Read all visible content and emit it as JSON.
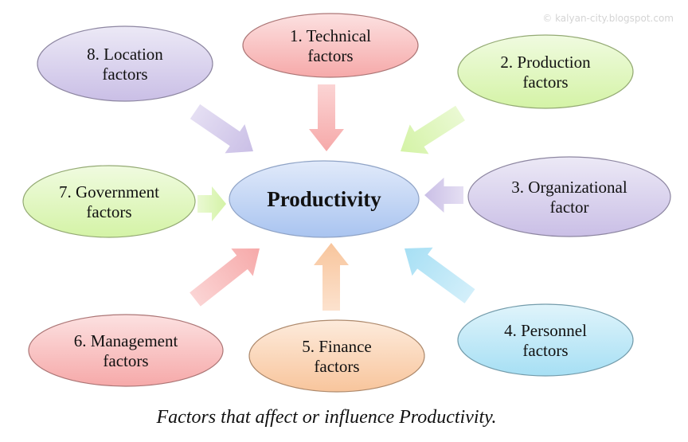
{
  "watermark": "© kalyan-city.blogspot.com",
  "center": {
    "label": "Productivity",
    "color": "#a9c4f0"
  },
  "factors": [
    {
      "line1": "1. Technical",
      "line2": "factors",
      "color": "#f6a9a9"
    },
    {
      "line1": "2. Production",
      "line2": "factors",
      "color": "#d4f3a6"
    },
    {
      "line1": "3. Organizational",
      "line2": "factor",
      "color": "#cabfe6"
    },
    {
      "line1": "4. Personnel",
      "line2": "factors",
      "color": "#a6dff4"
    },
    {
      "line1": "5. Finance",
      "line2": "factors",
      "color": "#f8c59c"
    },
    {
      "line1": "6. Management",
      "line2": "factors",
      "color": "#f6a9a9"
    },
    {
      "line1": "7. Government",
      "line2": "factors",
      "color": "#d4f3a6"
    },
    {
      "line1": "8. Location",
      "line2": "factors",
      "color": "#cabfe6"
    }
  ],
  "caption": "Factors that affect or influence Productivity."
}
